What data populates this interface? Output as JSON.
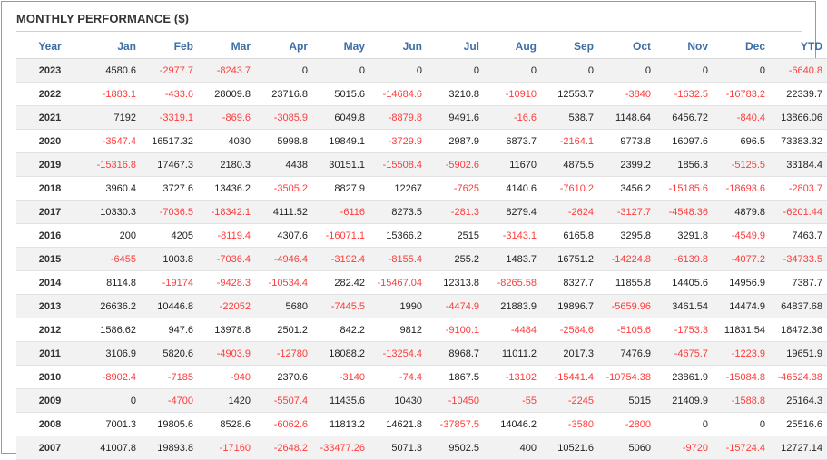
{
  "title": "MONTHLY PERFORMANCE ($)",
  "colors": {
    "header_text": "#3d6ea5",
    "negative": "#ff3b3b",
    "row_alt": "#f2f2f2"
  },
  "columns": [
    "Year",
    "Jan",
    "Feb",
    "Mar",
    "Apr",
    "May",
    "Jun",
    "Jul",
    "Aug",
    "Sep",
    "Oct",
    "Nov",
    "Dec",
    "YTD"
  ],
  "rows": [
    [
      "2023",
      "4580.6",
      "-2977.7",
      "-8243.7",
      "0",
      "0",
      "0",
      "0",
      "0",
      "0",
      "0",
      "0",
      "0",
      "-6640.8"
    ],
    [
      "2022",
      "-1883.1",
      "-433.6",
      "28009.8",
      "23716.8",
      "5015.6",
      "-14684.6",
      "3210.8",
      "-10910",
      "12553.7",
      "-3840",
      "-1632.5",
      "-16783.2",
      "22339.7"
    ],
    [
      "2021",
      "7192",
      "-3319.1",
      "-869.6",
      "-3085.9",
      "6049.8",
      "-8879.8",
      "9491.6",
      "-16.6",
      "538.7",
      "1148.64",
      "6456.72",
      "-840.4",
      "13866.06"
    ],
    [
      "2020",
      "-3547.4",
      "16517.32",
      "4030",
      "5998.8",
      "19849.1",
      "-3729.9",
      "2987.9",
      "6873.7",
      "-2164.1",
      "9773.8",
      "16097.6",
      "696.5",
      "73383.32"
    ],
    [
      "2019",
      "-15316.8",
      "17467.3",
      "2180.3",
      "4438",
      "30151.1",
      "-15508.4",
      "-5902.6",
      "11670",
      "4875.5",
      "2399.2",
      "1856.3",
      "-5125.5",
      "33184.4"
    ],
    [
      "2018",
      "3960.4",
      "3727.6",
      "13436.2",
      "-3505.2",
      "8827.9",
      "12267",
      "-7625",
      "4140.6",
      "-7610.2",
      "3456.2",
      "-15185.6",
      "-18693.6",
      "-2803.7"
    ],
    [
      "2017",
      "10330.3",
      "-7036.5",
      "-18342.1",
      "4111.52",
      "-6116",
      "8273.5",
      "-281.3",
      "8279.4",
      "-2624",
      "-3127.7",
      "-4548.36",
      "4879.8",
      "-6201.44"
    ],
    [
      "2016",
      "200",
      "4205",
      "-8119.4",
      "4307.6",
      "-16071.1",
      "15366.2",
      "2515",
      "-3143.1",
      "6165.8",
      "3295.8",
      "3291.8",
      "-4549.9",
      "7463.7"
    ],
    [
      "2015",
      "-6455",
      "1003.8",
      "-7036.4",
      "-4946.4",
      "-3192.4",
      "-8155.4",
      "255.2",
      "1483.7",
      "16751.2",
      "-14224.8",
      "-6139.8",
      "-4077.2",
      "-34733.5"
    ],
    [
      "2014",
      "8114.8",
      "-19174",
      "-9428.3",
      "-10534.4",
      "282.42",
      "-15467.04",
      "12313.8",
      "-8265.58",
      "8327.7",
      "11855.8",
      "14405.6",
      "14956.9",
      "7387.7"
    ],
    [
      "2013",
      "26636.2",
      "10446.8",
      "-22052",
      "5680",
      "-7445.5",
      "1990",
      "-4474.9",
      "21883.9",
      "19896.7",
      "-5659.96",
      "3461.54",
      "14474.9",
      "64837.68"
    ],
    [
      "2012",
      "1586.62",
      "947.6",
      "13978.8",
      "2501.2",
      "842.2",
      "9812",
      "-9100.1",
      "-4484",
      "-2584.6",
      "-5105.6",
      "-1753.3",
      "11831.54",
      "18472.36"
    ],
    [
      "2011",
      "3106.9",
      "5820.6",
      "-4903.9",
      "-12780",
      "18088.2",
      "-13254.4",
      "8968.7",
      "11011.2",
      "2017.3",
      "7476.9",
      "-4675.7",
      "-1223.9",
      "19651.9"
    ],
    [
      "2010",
      "-8902.4",
      "-7185",
      "-940",
      "2370.6",
      "-3140",
      "-74.4",
      "1867.5",
      "-13102",
      "-15441.4",
      "-10754.38",
      "23861.9",
      "-15084.8",
      "-46524.38"
    ],
    [
      "2009",
      "0",
      "-4700",
      "1420",
      "-5507.4",
      "11435.6",
      "10430",
      "-10450",
      "-55",
      "-2245",
      "5015",
      "21409.9",
      "-1588.8",
      "25164.3"
    ],
    [
      "2008",
      "7001.3",
      "19805.6",
      "8528.6",
      "-6062.6",
      "11813.2",
      "14621.8",
      "-37857.5",
      "14046.2",
      "-3580",
      "-2800",
      "0",
      "0",
      "25516.6"
    ],
    [
      "2007",
      "41007.8",
      "19893.8",
      "-17160",
      "-2648.2",
      "-33477.26",
      "5071.3",
      "9502.5",
      "400",
      "10521.6",
      "5060",
      "-9720",
      "-15724.4",
      "12727.14"
    ]
  ]
}
